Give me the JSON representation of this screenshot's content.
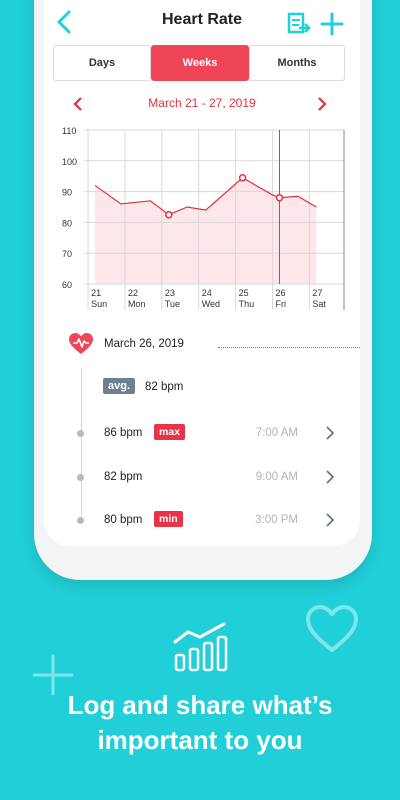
{
  "header": {
    "title": "Heart Rate",
    "back_icon": "back-chevron-icon",
    "export_icon": "export-icon",
    "add_icon": "plus-icon"
  },
  "segments": [
    {
      "label": "Days",
      "active": false
    },
    {
      "label": "Weeks",
      "active": true
    },
    {
      "label": "Months",
      "active": false
    }
  ],
  "range": {
    "label": "March 21 - 27, 2019"
  },
  "chart_data": {
    "type": "area",
    "y_ticks": [
      "110",
      "100",
      "90",
      "80",
      "70",
      "60"
    ],
    "ylim": [
      60,
      110
    ],
    "x_day_numbers": [
      "21",
      "22",
      "23",
      "24",
      "25",
      "26",
      "27"
    ],
    "x_day_names": [
      "Sun",
      "Mon",
      "Tue",
      "Wed",
      "Thu",
      "Fri",
      "Sat"
    ],
    "values": [
      92,
      86,
      87,
      82.5,
      85,
      84,
      94.5,
      89,
      88,
      88.5,
      85
    ],
    "x": [
      21,
      21.7,
      22.5,
      23,
      23.5,
      24,
      25,
      25.8,
      26,
      26.5,
      27
    ],
    "highlighted_points": [
      23,
      25,
      26
    ],
    "selected_day": 26,
    "colors": {
      "line": "#e2313e",
      "fill": "#fde7ea",
      "grid": "#d9d9d9"
    }
  },
  "detail": {
    "date": "March 26, 2019",
    "avg_badge": "avg.",
    "avg_value": "82 bpm",
    "readings": [
      {
        "bpm": "86 bpm",
        "tag": "max",
        "time": "7:00 AM"
      },
      {
        "bpm": "82 bpm",
        "tag": "",
        "time": "9:00 AM"
      },
      {
        "bpm": "80 bpm",
        "tag": "min",
        "time": "3:00 PM"
      }
    ]
  },
  "promo": {
    "line1": "Log and share what’s",
    "line2": "important to you",
    "icon": "bar-chart-trend-icon",
    "decor": [
      "plus-outline-icon",
      "heart-outline-icon"
    ]
  },
  "colors": {
    "background": "#21cfd8",
    "accent": "#f04556",
    "accent_text": "#e2313e"
  }
}
